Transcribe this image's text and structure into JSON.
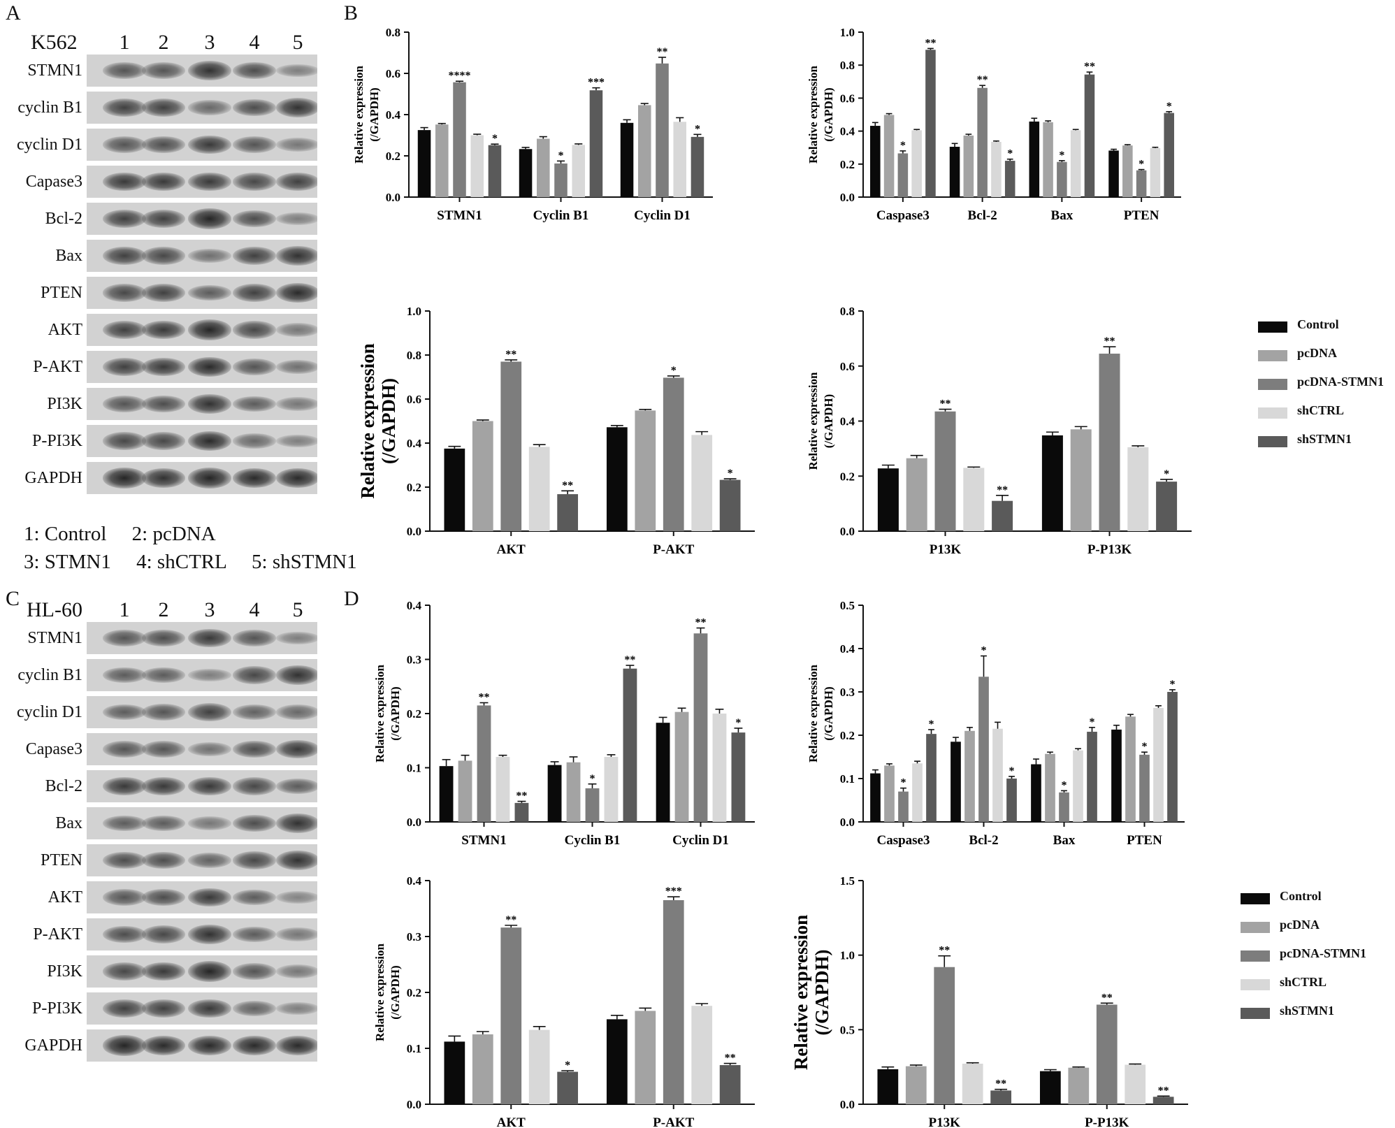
{
  "panels": {
    "a": {
      "letter": "A",
      "cell_line": "K562"
    },
    "b": {
      "letter": "B"
    },
    "c": {
      "letter": "C",
      "cell_line": "HL-60"
    },
    "d": {
      "letter": "D"
    }
  },
  "blot": {
    "lanes": [
      "1",
      "2",
      "3",
      "4",
      "5"
    ],
    "rows": [
      "STMN1",
      "cyclin B1",
      "cyclin D1",
      "Capase3",
      "Bcl-2",
      "Bax",
      "PTEN",
      "AKT",
      "P-AKT",
      "PI3K",
      "P-PI3K",
      "GAPDH"
    ],
    "k562_intensity": [
      [
        0.6,
        0.6,
        0.85,
        0.65,
        0.3
      ],
      [
        0.75,
        0.75,
        0.45,
        0.65,
        0.85
      ],
      [
        0.6,
        0.65,
        0.8,
        0.6,
        0.35
      ],
      [
        0.8,
        0.8,
        0.8,
        0.7,
        0.75
      ],
      [
        0.75,
        0.75,
        0.95,
        0.65,
        0.3
      ],
      [
        0.75,
        0.7,
        0.4,
        0.75,
        0.85
      ],
      [
        0.7,
        0.75,
        0.55,
        0.75,
        0.9
      ],
      [
        0.75,
        0.8,
        0.95,
        0.7,
        0.35
      ],
      [
        0.75,
        0.8,
        0.9,
        0.6,
        0.4
      ],
      [
        0.6,
        0.65,
        0.85,
        0.55,
        0.35
      ],
      [
        0.7,
        0.7,
        0.9,
        0.45,
        0.3
      ],
      [
        0.95,
        0.85,
        0.95,
        0.9,
        0.9
      ]
    ],
    "hl60_intensity": [
      [
        0.6,
        0.65,
        0.8,
        0.6,
        0.3
      ],
      [
        0.55,
        0.55,
        0.3,
        0.7,
        0.85
      ],
      [
        0.55,
        0.6,
        0.75,
        0.5,
        0.45
      ],
      [
        0.6,
        0.6,
        0.4,
        0.65,
        0.8
      ],
      [
        0.8,
        0.8,
        0.8,
        0.7,
        0.55
      ],
      [
        0.55,
        0.55,
        0.35,
        0.65,
        0.85
      ],
      [
        0.65,
        0.65,
        0.5,
        0.7,
        0.85
      ],
      [
        0.6,
        0.65,
        0.8,
        0.55,
        0.25
      ],
      [
        0.65,
        0.7,
        0.85,
        0.55,
        0.35
      ],
      [
        0.7,
        0.8,
        0.95,
        0.6,
        0.35
      ],
      [
        0.75,
        0.75,
        0.8,
        0.5,
        0.3
      ],
      [
        0.95,
        0.9,
        0.9,
        0.9,
        0.9
      ]
    ]
  },
  "blot_key": {
    "line1": "1: Control     2: pcDNA",
    "line2": "3: STMN1     4: shCTRL     5: shSTMN1"
  },
  "legend": {
    "entries": [
      "Control",
      "pcDNA",
      "pcDNA-STMN1",
      "shCTRL",
      "shSTMN1"
    ],
    "colors": [
      "#0a0a0a",
      "#a3a3a3",
      "#7d7d7d",
      "#d8d8d8",
      "#5a5a5a"
    ]
  },
  "chart_data": [
    {
      "panel": "B",
      "type": "bar",
      "ylabel": "Relative expression (/GAPDH)",
      "ylim": [
        0,
        0.8
      ],
      "yticks": [
        "0.0",
        "0.2",
        "0.4",
        "0.6",
        "0.8"
      ],
      "categories": [
        "STMN1",
        "Cyclin B1",
        "Cyclin D1"
      ],
      "series": [
        {
          "name": "Control",
          "values": [
            0.325,
            0.233,
            0.36
          ],
          "errors": [
            0.012,
            0.008,
            0.015
          ]
        },
        {
          "name": "pcDNA",
          "values": [
            0.352,
            0.283,
            0.446
          ],
          "errors": [
            0.005,
            0.01,
            0.008
          ]
        },
        {
          "name": "pcDNA-STMN1",
          "values": [
            0.557,
            0.163,
            0.648
          ],
          "errors": [
            0.005,
            0.012,
            0.03
          ]
        },
        {
          "name": "shCTRL",
          "values": [
            0.3,
            0.253,
            0.365
          ],
          "errors": [
            0.005,
            0.005,
            0.02
          ]
        },
        {
          "name": "shSTMN1",
          "values": [
            0.252,
            0.518,
            0.292
          ],
          "errors": [
            0.005,
            0.012,
            0.012
          ]
        }
      ],
      "significance": [
        [
          "",
          "",
          "****",
          "",
          "*"
        ],
        [
          "",
          "",
          "*",
          "",
          "***"
        ],
        [
          "",
          "",
          "**",
          "",
          "*"
        ]
      ]
    },
    {
      "panel": "B",
      "type": "bar",
      "ylabel": "Relative expression (/GAPDH)",
      "ylim": [
        0,
        1.0
      ],
      "yticks": [
        "0.0",
        "0.2",
        "0.4",
        "0.6",
        "0.8",
        "1.0"
      ],
      "categories": [
        "Caspase3",
        "Bcl-2",
        "Bax",
        "PTEN"
      ],
      "series": [
        {
          "name": "Control",
          "values": [
            0.432,
            0.305,
            0.458,
            0.282
          ],
          "errors": [
            0.02,
            0.02,
            0.02,
            0.008
          ]
        },
        {
          "name": "pcDNA",
          "values": [
            0.498,
            0.373,
            0.454,
            0.313
          ],
          "errors": [
            0.008,
            0.008,
            0.008,
            0.005
          ]
        },
        {
          "name": "pcDNA-STMN1",
          "values": [
            0.265,
            0.662,
            0.213,
            0.162
          ],
          "errors": [
            0.015,
            0.015,
            0.008,
            0.005
          ]
        },
        {
          "name": "shCTRL",
          "values": [
            0.405,
            0.335,
            0.405,
            0.297
          ],
          "errors": [
            0.005,
            0.005,
            0.005,
            0.005
          ]
        },
        {
          "name": "shSTMN1",
          "values": [
            0.893,
            0.22,
            0.743,
            0.51
          ],
          "errors": [
            0.008,
            0.01,
            0.015,
            0.008
          ]
        }
      ],
      "significance": [
        [
          "",
          "",
          "*",
          "",
          "**"
        ],
        [
          "",
          "",
          "**",
          "",
          "*"
        ],
        [
          "",
          "",
          "*",
          "",
          "**"
        ],
        [
          "",
          "",
          "*",
          "",
          "*"
        ]
      ]
    },
    {
      "panel": "B",
      "type": "bar",
      "ylabel": "Relative expression (/GAPDH)",
      "ylabel_line1": "Relative expression",
      "ylabel_line2": "(/GAPDH)",
      "ylim": [
        0,
        1.0
      ],
      "yticks": [
        "0.0",
        "0.2",
        "0.4",
        "0.6",
        "0.8",
        "1.0"
      ],
      "categories": [
        "AKT",
        "P-AKT"
      ],
      "series": [
        {
          "name": "Control",
          "values": [
            0.375,
            0.472
          ],
          "errors": [
            0.01,
            0.008
          ]
        },
        {
          "name": "pcDNA",
          "values": [
            0.5,
            0.548
          ],
          "errors": [
            0.005,
            0.005
          ]
        },
        {
          "name": "pcDNA-STMN1",
          "values": [
            0.77,
            0.697
          ],
          "errors": [
            0.008,
            0.008
          ]
        },
        {
          "name": "shCTRL",
          "values": [
            0.383,
            0.437
          ],
          "errors": [
            0.01,
            0.015
          ]
        },
        {
          "name": "shSTMN1",
          "values": [
            0.168,
            0.233
          ],
          "errors": [
            0.015,
            0.005
          ]
        }
      ],
      "significance": [
        [
          "",
          "",
          "**",
          "",
          "**"
        ],
        [
          "",
          "",
          "*",
          "",
          "*"
        ]
      ]
    },
    {
      "panel": "B",
      "type": "bar",
      "ylabel": "Relative expression (/GAPDH)",
      "ylim": [
        0,
        0.8
      ],
      "yticks": [
        "0.0",
        "0.2",
        "0.4",
        "0.6",
        "0.8"
      ],
      "categories": [
        "P13K",
        "P-P13K"
      ],
      "series": [
        {
          "name": "Control",
          "values": [
            0.228,
            0.348
          ],
          "errors": [
            0.012,
            0.012
          ]
        },
        {
          "name": "pcDNA",
          "values": [
            0.265,
            0.37
          ],
          "errors": [
            0.01,
            0.01
          ]
        },
        {
          "name": "pcDNA-STMN1",
          "values": [
            0.435,
            0.645
          ],
          "errors": [
            0.008,
            0.025
          ]
        },
        {
          "name": "shCTRL",
          "values": [
            0.23,
            0.305
          ],
          "errors": [
            0.003,
            0.005
          ]
        },
        {
          "name": "shSTMN1",
          "values": [
            0.11,
            0.18
          ],
          "errors": [
            0.02,
            0.008
          ]
        }
      ],
      "significance": [
        [
          "",
          "",
          "**",
          "",
          "**"
        ],
        [
          "",
          "",
          "**",
          "",
          "*"
        ]
      ]
    },
    {
      "panel": "D",
      "type": "bar",
      "ylabel": "Relative expression (/GAPDH)",
      "ylim": [
        0,
        0.4
      ],
      "yticks": [
        "0.0",
        "0.1",
        "0.2",
        "0.3",
        "0.4"
      ],
      "categories": [
        "STMN1",
        "Cyclin B1",
        "Cyclin D1"
      ],
      "series": [
        {
          "name": "Control",
          "values": [
            0.103,
            0.105,
            0.183
          ],
          "errors": [
            0.012,
            0.006,
            0.01
          ]
        },
        {
          "name": "pcDNA",
          "values": [
            0.113,
            0.11,
            0.203
          ],
          "errors": [
            0.01,
            0.01,
            0.007
          ]
        },
        {
          "name": "pcDNA-STMN1",
          "values": [
            0.215,
            0.062,
            0.348
          ],
          "errors": [
            0.005,
            0.008,
            0.01
          ]
        },
        {
          "name": "shCTRL",
          "values": [
            0.12,
            0.12,
            0.2
          ],
          "errors": [
            0.003,
            0.004,
            0.008
          ]
        },
        {
          "name": "shSTMN1",
          "values": [
            0.035,
            0.283,
            0.165
          ],
          "errors": [
            0.003,
            0.006,
            0.008
          ]
        }
      ],
      "significance": [
        [
          "",
          "",
          "**",
          "",
          "**"
        ],
        [
          "",
          "",
          "*",
          "",
          "**"
        ],
        [
          "",
          "",
          "**",
          "",
          "*"
        ]
      ]
    },
    {
      "panel": "D",
      "type": "bar",
      "ylabel": "Relative expression (/GAPDH)",
      "ylim": [
        0,
        0.5
      ],
      "yticks": [
        "0.0",
        "0.1",
        "0.2",
        "0.3",
        "0.4",
        "0.5"
      ],
      "categories": [
        "Caspase3",
        "Bcl-2",
        "Bax",
        "PTEN"
      ],
      "series": [
        {
          "name": "Control",
          "values": [
            0.112,
            0.185,
            0.133,
            0.213
          ],
          "errors": [
            0.008,
            0.01,
            0.012,
            0.01
          ]
        },
        {
          "name": "pcDNA",
          "values": [
            0.13,
            0.21,
            0.157,
            0.243
          ],
          "errors": [
            0.004,
            0.008,
            0.004,
            0.005
          ]
        },
        {
          "name": "pcDNA-STMN1",
          "values": [
            0.07,
            0.335,
            0.068,
            0.155
          ],
          "errors": [
            0.008,
            0.048,
            0.004,
            0.006
          ]
        },
        {
          "name": "shCTRL",
          "values": [
            0.135,
            0.215,
            0.165,
            0.263
          ],
          "errors": [
            0.005,
            0.015,
            0.004,
            0.005
          ]
        },
        {
          "name": "shSTMN1",
          "values": [
            0.203,
            0.1,
            0.208,
            0.3
          ],
          "errors": [
            0.01,
            0.005,
            0.01,
            0.005
          ]
        }
      ],
      "significance": [
        [
          "",
          "",
          "*",
          "",
          "*"
        ],
        [
          "",
          "",
          "*",
          "",
          "*"
        ],
        [
          "",
          "",
          "*",
          "",
          "*"
        ],
        [
          "",
          "",
          "*",
          "",
          "*"
        ]
      ]
    },
    {
      "panel": "D",
      "type": "bar",
      "ylabel": "Relative expression (/GAPDH)",
      "ylim": [
        0,
        0.4
      ],
      "yticks": [
        "0.0",
        "0.1",
        "0.2",
        "0.3",
        "0.4"
      ],
      "categories": [
        "AKT",
        "P-AKT"
      ],
      "series": [
        {
          "name": "Control",
          "values": [
            0.112,
            0.152
          ],
          "errors": [
            0.01,
            0.007
          ]
        },
        {
          "name": "pcDNA",
          "values": [
            0.125,
            0.167
          ],
          "errors": [
            0.005,
            0.005
          ]
        },
        {
          "name": "pcDNA-STMN1",
          "values": [
            0.316,
            0.365
          ],
          "errors": [
            0.004,
            0.006
          ]
        },
        {
          "name": "shCTRL",
          "values": [
            0.133,
            0.176
          ],
          "errors": [
            0.006,
            0.004
          ]
        },
        {
          "name": "shSTMN1",
          "values": [
            0.058,
            0.07
          ],
          "errors": [
            0.002,
            0.003
          ]
        }
      ],
      "significance": [
        [
          "",
          "",
          "**",
          "",
          "*"
        ],
        [
          "",
          "",
          "***",
          "",
          "**"
        ]
      ]
    },
    {
      "panel": "D",
      "type": "bar",
      "ylabel": "Relative expression (/GAPDH)",
      "ylabel_line1": "Relative expression",
      "ylabel_line2": "(/GAPDH)",
      "ylim": [
        0,
        1.5
      ],
      "yticks": [
        "0.0",
        "0.5",
        "1.0",
        "1.5"
      ],
      "categories": [
        "P13K",
        "P-P13K"
      ],
      "series": [
        {
          "name": "Control",
          "values": [
            0.235,
            0.222
          ],
          "errors": [
            0.015,
            0.01
          ]
        },
        {
          "name": "pcDNA",
          "values": [
            0.255,
            0.245
          ],
          "errors": [
            0.008,
            0.005
          ]
        },
        {
          "name": "pcDNA-STMN1",
          "values": [
            0.92,
            0.668
          ],
          "errors": [
            0.075,
            0.01
          ]
        },
        {
          "name": "shCTRL",
          "values": [
            0.272,
            0.265
          ],
          "errors": [
            0.006,
            0.005
          ]
        },
        {
          "name": "shSTMN1",
          "values": [
            0.092,
            0.05
          ],
          "errors": [
            0.008,
            0.005
          ]
        }
      ],
      "significance": [
        [
          "",
          "",
          "**",
          "",
          "**"
        ],
        [
          "",
          "",
          "**",
          "",
          "**"
        ]
      ]
    }
  ]
}
